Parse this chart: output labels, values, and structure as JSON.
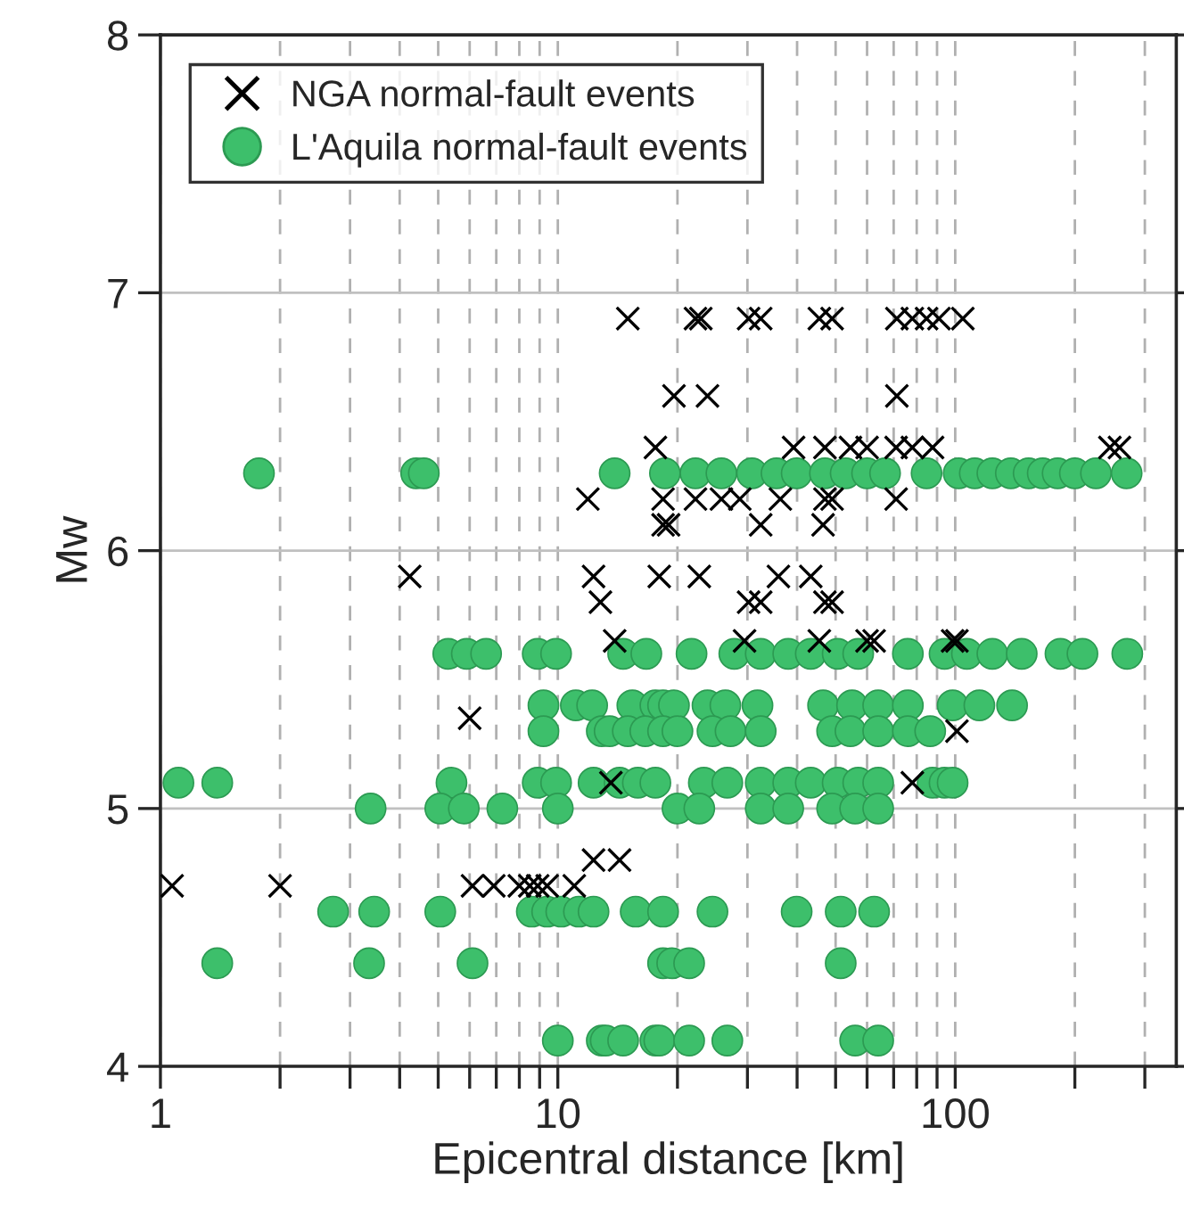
{
  "chart_data": {
    "type": "scatter",
    "xlabel": "Epicentral distance [km]",
    "ylabel": "Mw",
    "log": "x",
    "xlim": [
      1,
      360
    ],
    "ylim": [
      4,
      8
    ],
    "xticks": [
      1,
      {
        "value": 2,
        "label": null
      },
      {
        "value": 3,
        "label": null
      },
      {
        "value": 4,
        "label": null
      },
      {
        "value": 5,
        "label": null
      },
      {
        "value": 6,
        "label": null
      },
      {
        "value": 7,
        "label": null
      },
      {
        "value": 8,
        "label": null
      },
      {
        "value": 9,
        "label": null
      },
      10,
      {
        "value": 20,
        "label": null
      },
      {
        "value": 30,
        "label": null
      },
      {
        "value": 40,
        "label": null
      },
      {
        "value": 50,
        "label": null
      },
      {
        "value": 60,
        "label": null
      },
      {
        "value": 70,
        "label": null
      },
      {
        "value": 80,
        "label": null
      },
      {
        "value": 90,
        "label": null
      },
      100,
      {
        "value": 200,
        "label": null
      },
      {
        "value": 300,
        "label": null
      }
    ],
    "yticks": [
      4,
      5,
      6,
      7,
      8
    ],
    "grid": true,
    "legend": "top left",
    "series": [
      {
        "name": "NGA normal-fault events",
        "color": "#000000",
        "marker": "cross",
        "x": [
          15,
          22.2,
          22.9,
          30.2,
          32.4,
          45.5,
          49,
          71.3,
          78,
          84.7,
          91,
          104.5,
          19.6,
          23.8,
          71.3,
          17.6,
          39.2,
          47,
          54.5,
          60,
          71,
          78,
          87.7,
          245,
          259,
          11.9,
          18.4,
          22.2,
          25.8,
          28.7,
          36.3,
          47,
          49,
          71,
          18.4,
          19,
          32.4,
          46.5,
          4.24,
          12.3,
          18,
          22.7,
          35.9,
          43.3,
          12.8,
          30.2,
          32.4,
          47,
          49,
          13.9,
          29.5,
          45.5,
          60,
          62.5,
          98.5,
          101,
          6.0,
          78,
          13.6,
          101,
          12.3,
          14.3,
          1.07,
          2.0,
          6.1,
          6.9,
          8.0,
          8.5,
          8.9,
          9.4,
          11
        ],
        "values": [
          6.9,
          6.9,
          6.9,
          6.9,
          6.9,
          6.9,
          6.9,
          6.9,
          6.9,
          6.9,
          6.9,
          6.9,
          6.6,
          6.6,
          6.6,
          6.4,
          6.4,
          6.4,
          6.4,
          6.4,
          6.4,
          6.4,
          6.4,
          6.4,
          6.4,
          6.2,
          6.2,
          6.2,
          6.2,
          6.2,
          6.2,
          6.2,
          6.2,
          6.2,
          6.1,
          6.1,
          6.1,
          6.1,
          5.9,
          5.9,
          5.9,
          5.9,
          5.9,
          5.9,
          5.8,
          5.8,
          5.8,
          5.8,
          5.8,
          5.65,
          5.65,
          5.65,
          5.65,
          5.65,
          5.65,
          5.65,
          5.35,
          5.1,
          5.1,
          5.3,
          4.8,
          4.8,
          4.7,
          4.7,
          4.7,
          4.7,
          4.7,
          4.7,
          4.7,
          4.7,
          4.7
        ]
      },
      {
        "name": "L'Aquila normal-fault events",
        "color": "#3dbf6b",
        "marker": "circle",
        "x": [
          1.77,
          4.4,
          4.6,
          13.9,
          18.6,
          22.2,
          25.8,
          30.8,
          35.5,
          39.9,
          47,
          53,
          60,
          66.6,
          84.7,
          102,
          112,
          124,
          138,
          153,
          166,
          181,
          200,
          226,
          270,
          5.3,
          5.9,
          6.6,
          8.9,
          9.9,
          14.6,
          16.7,
          21.7,
          27.8,
          32.4,
          38,
          43.3,
          50.6,
          57,
          76,
          94,
          107,
          124,
          147,
          184,
          209,
          271,
          9.2,
          11.1,
          12.2,
          15.4,
          17.6,
          18.4,
          19.6,
          23.8,
          26.4,
          31.8,
          46.5,
          55,
          64,
          76,
          98.5,
          115,
          139,
          9.2,
          12.9,
          13.5,
          15,
          16.6,
          18.4,
          20,
          24.5,
          27.2,
          32.4,
          49,
          54.5,
          64,
          76,
          86.5,
          1.11,
          1.39,
          5.4,
          8.9,
          9.9,
          12.3,
          14.3,
          15.9,
          17.6,
          23.3,
          26.7,
          32.4,
          38,
          43.3,
          50.6,
          57,
          64,
          87.7,
          94,
          98.5,
          3.38,
          5.06,
          5.8,
          7.25,
          10,
          20,
          22.7,
          32.4,
          38,
          49,
          56,
          64,
          2.72,
          3.45,
          5.06,
          8.6,
          9.4,
          10.2,
          11.3,
          12.3,
          15.7,
          18.4,
          24.5,
          39.9,
          51.5,
          62.5,
          1.39,
          3.35,
          6.1,
          18.4,
          19.4,
          21.4,
          51.5,
          10,
          12.9,
          13.2,
          14.6,
          17.6,
          18,
          21.4,
          26.7,
          56,
          64
        ],
        "values": [
          6.3,
          6.3,
          6.3,
          6.3,
          6.3,
          6.3,
          6.3,
          6.3,
          6.3,
          6.3,
          6.3,
          6.3,
          6.3,
          6.3,
          6.3,
          6.3,
          6.3,
          6.3,
          6.3,
          6.3,
          6.3,
          6.3,
          6.3,
          6.3,
          6.3,
          5.6,
          5.6,
          5.6,
          5.6,
          5.6,
          5.6,
          5.6,
          5.6,
          5.6,
          5.6,
          5.6,
          5.6,
          5.6,
          5.6,
          5.6,
          5.6,
          5.6,
          5.6,
          5.6,
          5.6,
          5.6,
          5.6,
          5.4,
          5.4,
          5.4,
          5.4,
          5.4,
          5.4,
          5.4,
          5.4,
          5.4,
          5.4,
          5.4,
          5.4,
          5.4,
          5.4,
          5.4,
          5.4,
          5.4,
          5.3,
          5.3,
          5.3,
          5.3,
          5.3,
          5.3,
          5.3,
          5.3,
          5.3,
          5.3,
          5.3,
          5.3,
          5.3,
          5.3,
          5.3,
          5.1,
          5.1,
          5.1,
          5.1,
          5.1,
          5.1,
          5.1,
          5.1,
          5.1,
          5.1,
          5.1,
          5.1,
          5.1,
          5.1,
          5.1,
          5.1,
          5.1,
          5.1,
          5.1,
          5.1,
          5.0,
          5.0,
          5.0,
          5.0,
          5.0,
          5.0,
          5.0,
          5.0,
          5.0,
          5.0,
          5.0,
          5.0,
          4.6,
          4.6,
          4.6,
          4.6,
          4.6,
          4.6,
          4.6,
          4.6,
          4.6,
          4.6,
          4.6,
          4.6,
          4.6,
          4.6,
          4.4,
          4.4,
          4.4,
          4.4,
          4.4,
          4.4,
          4.4,
          4.1,
          4.1,
          4.1,
          4.1,
          4.1,
          4.1,
          4.1,
          4.1,
          4.1,
          4.1
        ]
      }
    ]
  }
}
